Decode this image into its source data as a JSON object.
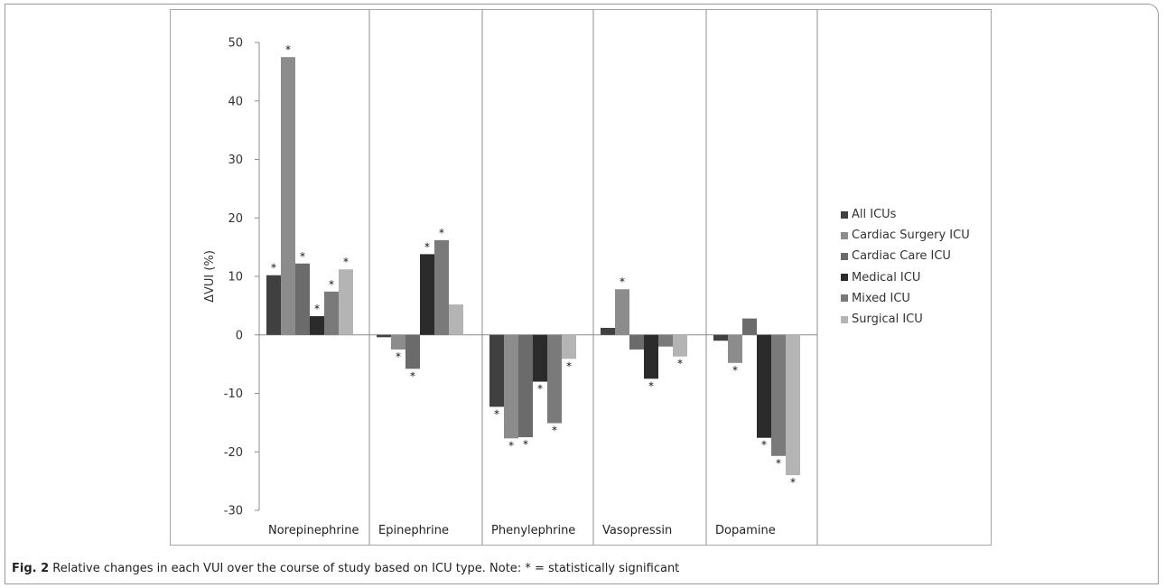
{
  "chart_data": {
    "type": "bar",
    "categories": [
      "Norepinephrine",
      "Epinephrine",
      "Phenylephrine",
      "Vasopressin",
      "Dopamine"
    ],
    "ylabel": "ΔVUI (%)",
    "xlabel": "",
    "ylim": [
      -30,
      50
    ],
    "yticks": [
      -30,
      -20,
      -10,
      0,
      10,
      20,
      30,
      40,
      50
    ],
    "legend_position": "right",
    "grid": false,
    "significance_marker": "*",
    "series": [
      {
        "name": "All ICUs",
        "color": "#404040",
        "values": [
          10.2,
          -0.4,
          -12.3,
          1.2,
          -1.0
        ],
        "significant": [
          true,
          false,
          true,
          false,
          false
        ]
      },
      {
        "name": "Cardiac Surgery ICU",
        "color": "#8c8c8c",
        "values": [
          47.5,
          -2.5,
          -17.7,
          7.8,
          -4.8
        ],
        "significant": [
          true,
          true,
          true,
          true,
          true
        ]
      },
      {
        "name": "Cardiac Care ICU",
        "color": "#6b6b6b",
        "values": [
          12.2,
          -5.8,
          -17.5,
          -2.5,
          2.8
        ],
        "significant": [
          true,
          true,
          true,
          false,
          false
        ]
      },
      {
        "name": "Medical ICU",
        "color": "#2b2b2b",
        "values": [
          3.2,
          13.8,
          -8.0,
          -7.5,
          -17.6
        ],
        "significant": [
          true,
          true,
          true,
          true,
          true
        ]
      },
      {
        "name": "Mixed ICU",
        "color": "#7a7a7a",
        "values": [
          7.4,
          16.2,
          -15.1,
          -2.0,
          -20.7
        ],
        "significant": [
          true,
          true,
          true,
          false,
          true
        ]
      },
      {
        "name": "Surgical ICU",
        "color": "#b4b4b4",
        "values": [
          11.2,
          5.2,
          -4.1,
          -3.7,
          -24.0
        ],
        "significant": [
          true,
          false,
          true,
          true,
          true
        ]
      }
    ]
  },
  "caption": {
    "label": "Fig. 2",
    "text": " Relative changes in each VUI over the course of study based on ICU type. Note: * = statistically significant"
  }
}
